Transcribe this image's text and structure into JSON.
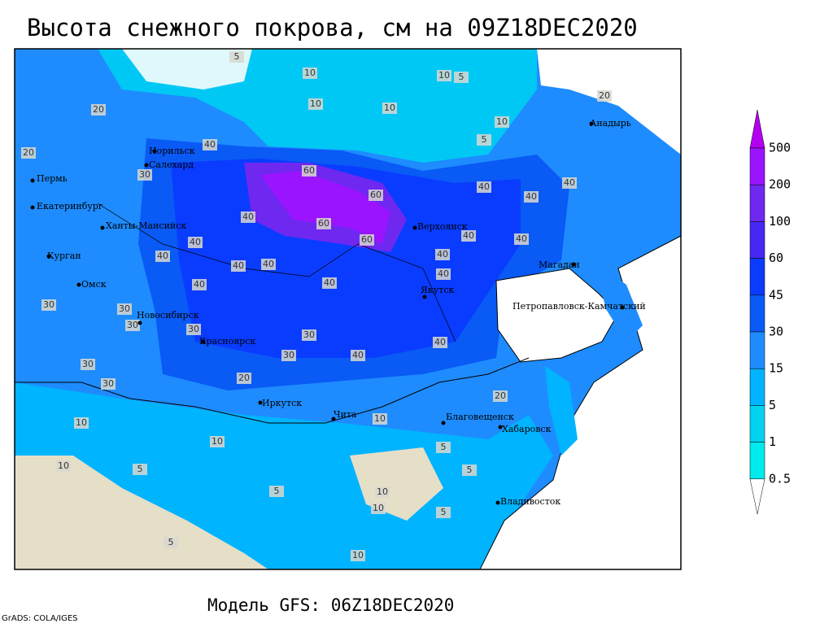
{
  "title": "Высота снежного покрова, см на 09Z18DEC2020",
  "footer": "Модель GFS: 06Z18DEC2020",
  "credit": "GrADS: COLA/IGES",
  "legend": {
    "levels": [
      500,
      200,
      100,
      60,
      45,
      30,
      15,
      5,
      1,
      0.5
    ],
    "colors": [
      "#b400f0",
      "#9a14ff",
      "#6e28f0",
      "#4628f5",
      "#0a3cff",
      "#0a5af5",
      "#1e8cff",
      "#00b4ff",
      "#00d2f0",
      "#00ebeb",
      "#96f5ff",
      "#ffffff"
    ]
  },
  "cities": [
    "Норильск",
    "Салехард",
    "Пермь",
    "Екатеринбург",
    "Ханты-Мансийск",
    "Курган",
    "Омск",
    "Новосибирск",
    "Красноярск",
    "Иркутск",
    "Чита",
    "Верхоянск",
    "Якутск",
    "Магадан",
    "Анадырь",
    "Петропавловск-Камчатский",
    "Благовещенск",
    "Хабаровск",
    "Владивосток"
  ],
  "contour_labels": [
    5,
    10,
    10,
    5,
    10,
    10,
    10,
    5,
    20,
    20,
    20,
    30,
    40,
    60,
    60,
    40,
    40,
    40,
    40,
    60,
    60,
    40,
    40,
    40,
    40,
    40,
    40,
    40,
    40,
    40,
    40,
    30,
    30,
    30,
    30,
    30,
    40,
    40,
    20,
    30,
    30,
    30,
    20,
    10,
    10,
    5,
    10,
    5,
    10,
    5,
    10,
    5,
    5,
    10,
    5,
    10
  ]
}
